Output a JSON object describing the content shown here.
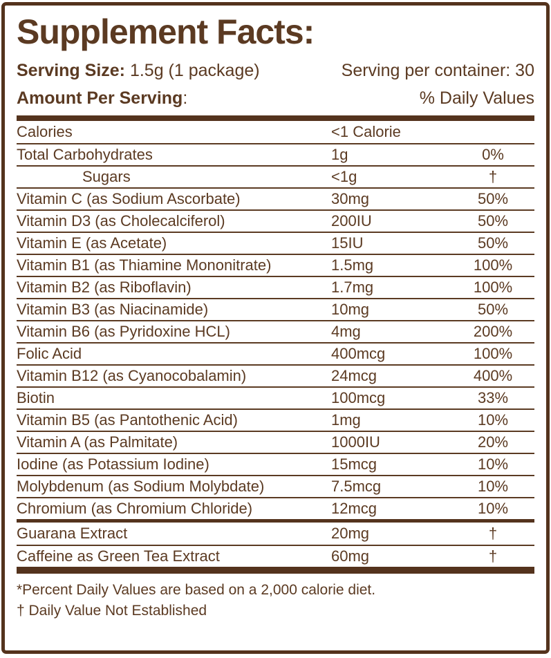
{
  "colors": {
    "brown": "#5b3a22",
    "bar": "#54331d",
    "background": "#ffffff"
  },
  "header": {
    "title": "Supplement Facts:",
    "serving_size_label": "Serving Size:",
    "serving_size_value": "1.5g (1 package)",
    "servings_per_container": "Serving per container: 30",
    "amount_per_serving_label": "Amount Per Serving",
    "amount_per_serving_colon": ":",
    "daily_values_label": "% Daily Values"
  },
  "table": {
    "sections": [
      {
        "rows": [
          {
            "name": "Calories",
            "amount": "<1 Calorie",
            "dv": "",
            "indent": false
          },
          {
            "name": "Total Carbohydrates",
            "amount": "1g",
            "dv": "0%",
            "indent": false
          },
          {
            "name": "Sugars",
            "amount": "<1g",
            "dv": "†",
            "indent": true
          },
          {
            "name": "Vitamin C (as Sodium Ascorbate)",
            "amount": "30mg",
            "dv": "50%",
            "indent": false
          },
          {
            "name": "Vitamin D3 (as Cholecalciferol)",
            "amount": "200IU",
            "dv": "50%",
            "indent": false
          },
          {
            "name": "Vitamin E (as Acetate)",
            "amount": "15IU",
            "dv": "50%",
            "indent": false
          },
          {
            "name": "Vitamin B1 (as Thiamine Mononitrate)",
            "amount": "1.5mg",
            "dv": "100%",
            "indent": false
          },
          {
            "name": "Vitamin B2 (as Riboflavin)",
            "amount": "1.7mg",
            "dv": "100%",
            "indent": false
          },
          {
            "name": "Vitamin B3 (as Niacinamide)",
            "amount": "10mg",
            "dv": "50%",
            "indent": false
          },
          {
            "name": "Vitamin B6 (as Pyridoxine HCL)",
            "amount": "4mg",
            "dv": "200%",
            "indent": false
          },
          {
            "name": "Folic Acid",
            "amount": "400mcg",
            "dv": "100%",
            "indent": false
          },
          {
            "name": "Vitamin B12 (as Cyanocobalamin)",
            "amount": "24mcg",
            "dv": "400%",
            "indent": false
          },
          {
            "name": "Biotin",
            "amount": "100mcg",
            "dv": "33%",
            "indent": false
          },
          {
            "name": "Vitamin B5 (as Pantothenic Acid)",
            "amount": "1mg",
            "dv": "10%",
            "indent": false
          },
          {
            "name": "Vitamin A (as Palmitate)",
            "amount": "1000IU",
            "dv": "20%",
            "indent": false
          },
          {
            "name": "Iodine (as Potassium Iodine)",
            "amount": "15mcg",
            "dv": "10%",
            "indent": false
          },
          {
            "name": "Molybdenum (as Sodium Molybdate)",
            "amount": "7.5mcg",
            "dv": "10%",
            "indent": false
          },
          {
            "name": "Chromium (as Chromium Chloride)",
            "amount": "12mcg",
            "dv": "10%",
            "indent": false
          }
        ]
      },
      {
        "rows": [
          {
            "name": "Guarana Extract",
            "amount": "20mg",
            "dv": "†",
            "indent": false
          },
          {
            "name": "Caffeine as Green Tea Extract",
            "amount": "60mg",
            "dv": "†",
            "indent": false
          }
        ]
      }
    ]
  },
  "footnotes": {
    "line1": "*Percent Daily Values are based on a 2,000 calorie diet.",
    "line2": "† Daily Value Not Established"
  }
}
